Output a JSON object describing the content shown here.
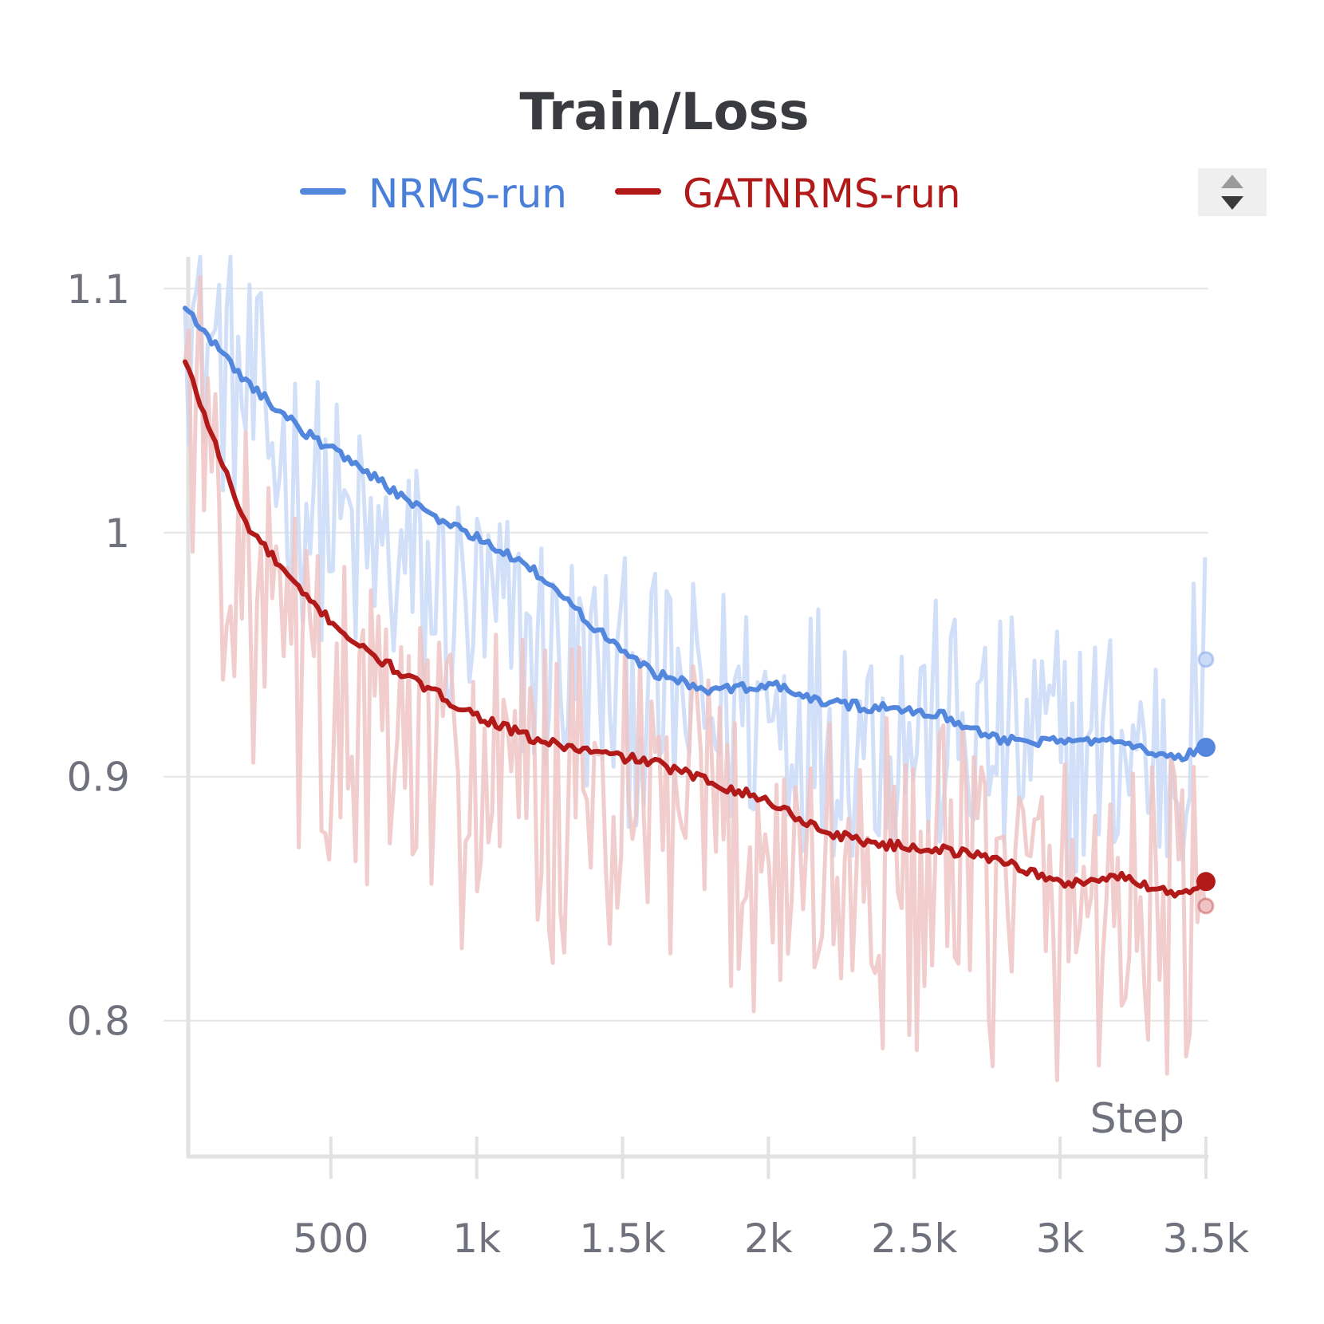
{
  "chart_data": {
    "type": "line",
    "title": "Train/Loss",
    "xlabel": "Step",
    "ylabel": "",
    "xlim": [
      0,
      3500
    ],
    "ylim": [
      0.745,
      1.113
    ],
    "x_ticks": [
      500,
      1000,
      1500,
      2000,
      2500,
      3000,
      3500
    ],
    "x_tick_labels": [
      "500",
      "1k",
      "1.5k",
      "2k",
      "2.5k",
      "3k",
      "3.5k"
    ],
    "y_ticks": [
      0.8,
      0.9,
      1.0,
      1.1
    ],
    "y_tick_labels": [
      "0.8",
      "0.9",
      "1",
      "1.1"
    ],
    "grid": true,
    "legend_position": "top-center",
    "x": [
      0,
      200,
      400,
      600,
      800,
      1000,
      1200,
      1400,
      1600,
      1800,
      2000,
      2200,
      2400,
      2600,
      2800,
      3000,
      3200,
      3400,
      3500
    ],
    "series": [
      {
        "name": "NRMS-run",
        "color": "#5387dd",
        "raw_color": "#c9dbf7",
        "smoothed": [
          1.092,
          1.063,
          1.042,
          1.027,
          1.01,
          0.998,
          0.984,
          0.962,
          0.943,
          0.935,
          0.938,
          0.93,
          0.928,
          0.925,
          0.915,
          0.914,
          0.916,
          0.907,
          0.912
        ],
        "raw": [
          1.092,
          1.055,
          1.018,
          0.992,
          0.978,
          0.965,
          0.952,
          0.94,
          0.93,
          0.925,
          0.928,
          0.922,
          0.92,
          0.918,
          0.912,
          0.91,
          0.912,
          0.905,
          0.948
        ]
      },
      {
        "name": "GATNRMS-run",
        "color": "#b21a1a",
        "raw_color": "#efc4c4",
        "smoothed": [
          1.07,
          1.005,
          0.975,
          0.953,
          0.938,
          0.925,
          0.915,
          0.91,
          0.906,
          0.898,
          0.89,
          0.877,
          0.872,
          0.87,
          0.866,
          0.856,
          0.859,
          0.852,
          0.857
        ],
        "raw": [
          1.07,
          0.975,
          0.935,
          0.915,
          0.905,
          0.895,
          0.89,
          0.885,
          0.882,
          0.875,
          0.868,
          0.86,
          0.855,
          0.852,
          0.85,
          0.845,
          0.848,
          0.842,
          0.847
        ]
      }
    ]
  },
  "controls": {
    "sort_icon": "sort-arrows-icon"
  }
}
